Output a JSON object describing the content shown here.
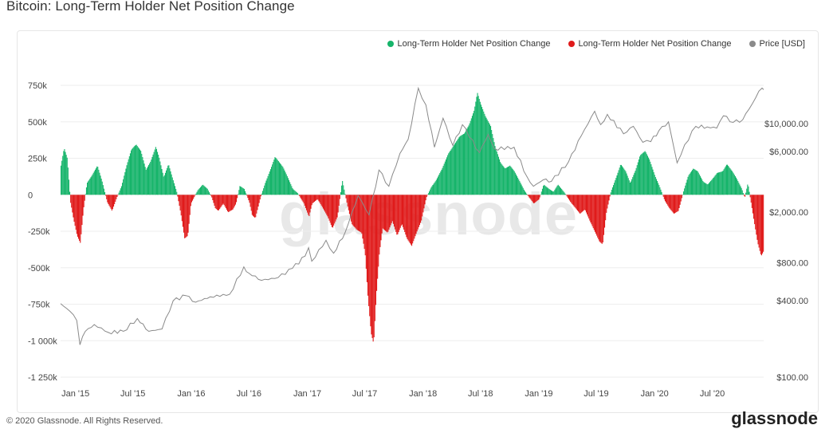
{
  "page": {
    "title": "Bitcoin: Long-Term Holder Net Position Change",
    "copyright": "© 2020 Glassnode. All Rights Reserved.",
    "footer_logo": "glassnode",
    "watermark": "glassnode"
  },
  "colors": {
    "positive": "#16b46a",
    "negative": "#e01b1b",
    "price": "#8a8a8a",
    "grid": "#eeeeee"
  },
  "chart_data": {
    "type": "area",
    "title": "Bitcoin: Long-Term Holder Net Position Change",
    "legend_placement": "top-right",
    "grid": true,
    "legend": [
      {
        "label": "Long-Term Holder Net Position Change",
        "color": "#16b46a"
      },
      {
        "label": "Long-Term Holder Net Position Change",
        "color": "#e01b1b"
      },
      {
        "label": "Price [USD]",
        "color": "#8a8a8a"
      }
    ],
    "x_ticks": [
      "Jan '15",
      "Jul '15",
      "Jan '16",
      "Jul '16",
      "Jan '17",
      "Jul '17",
      "Jan '18",
      "Jul '18",
      "Jan '19",
      "Jul '19",
      "Jan '20",
      "Jul '20"
    ],
    "x_range": [
      "2014-11-15",
      "2020-12-10"
    ],
    "y_left": {
      "ticks": [
        "750k",
        "500k",
        "250k",
        "0",
        "-250k",
        "-500k",
        "-750k",
        "-1 000k",
        "-1 250k"
      ],
      "tick_values": [
        750000,
        500000,
        250000,
        0,
        -250000,
        -500000,
        -750000,
        -1000000,
        -1250000
      ],
      "range": [
        -1250000,
        750000
      ]
    },
    "y_right": {
      "scale": "log",
      "ticks": [
        "$10,000.00",
        "$6,000.00",
        "$2,000.00",
        "$800.00",
        "$400.00",
        "$100.00"
      ],
      "tick_values": [
        10000,
        6000,
        2000,
        800,
        400,
        100
      ],
      "range": [
        100,
        20000
      ]
    },
    "net_position_change": [
      [
        "2014-11-15",
        200000
      ],
      [
        "2014-11-25",
        320000
      ],
      [
        "2014-12-05",
        250000
      ],
      [
        "2014-12-15",
        -50000
      ],
      [
        "2014-12-25",
        -170000
      ],
      [
        "2015-01-05",
        -280000
      ],
      [
        "2015-01-15",
        -330000
      ],
      [
        "2015-01-25",
        -100000
      ],
      [
        "2015-02-05",
        80000
      ],
      [
        "2015-02-20",
        130000
      ],
      [
        "2015-03-10",
        200000
      ],
      [
        "2015-03-25",
        90000
      ],
      [
        "2015-04-10",
        -50000
      ],
      [
        "2015-04-25",
        -110000
      ],
      [
        "2015-05-10",
        -20000
      ],
      [
        "2015-05-25",
        60000
      ],
      [
        "2015-06-10",
        200000
      ],
      [
        "2015-06-25",
        310000
      ],
      [
        "2015-07-10",
        345000
      ],
      [
        "2015-07-25",
        300000
      ],
      [
        "2015-08-10",
        170000
      ],
      [
        "2015-08-25",
        230000
      ],
      [
        "2015-09-10",
        330000
      ],
      [
        "2015-09-20",
        260000
      ],
      [
        "2015-10-05",
        120000
      ],
      [
        "2015-10-20",
        210000
      ],
      [
        "2015-11-01",
        120000
      ],
      [
        "2015-11-15",
        20000
      ],
      [
        "2015-11-28",
        -130000
      ],
      [
        "2015-12-10",
        -300000
      ],
      [
        "2015-12-20",
        -280000
      ],
      [
        "2015-12-30",
        -60000
      ],
      [
        "2016-01-20",
        30000
      ],
      [
        "2016-02-05",
        70000
      ],
      [
        "2016-02-20",
        40000
      ],
      [
        "2016-03-05",
        -20000
      ],
      [
        "2016-03-15",
        -90000
      ],
      [
        "2016-03-25",
        -110000
      ],
      [
        "2016-04-10",
        -60000
      ],
      [
        "2016-04-25",
        -120000
      ],
      [
        "2016-05-10",
        -100000
      ],
      [
        "2016-05-20",
        -60000
      ],
      [
        "2016-06-01",
        60000
      ],
      [
        "2016-06-15",
        40000
      ],
      [
        "2016-07-01",
        -50000
      ],
      [
        "2016-07-10",
        -140000
      ],
      [
        "2016-07-20",
        -160000
      ],
      [
        "2016-08-05",
        -20000
      ],
      [
        "2016-08-20",
        80000
      ],
      [
        "2016-09-05",
        170000
      ],
      [
        "2016-09-20",
        260000
      ],
      [
        "2016-10-01",
        230000
      ],
      [
        "2016-10-15",
        190000
      ],
      [
        "2016-10-30",
        120000
      ],
      [
        "2016-11-15",
        40000
      ],
      [
        "2016-12-01",
        10000
      ],
      [
        "2016-12-20",
        -60000
      ],
      [
        "2017-01-05",
        -150000
      ],
      [
        "2017-01-15",
        -60000
      ],
      [
        "2017-02-01",
        -30000
      ],
      [
        "2017-02-15",
        -80000
      ],
      [
        "2017-03-05",
        -150000
      ],
      [
        "2017-03-20",
        -230000
      ],
      [
        "2017-04-05",
        -150000
      ],
      [
        "2017-04-20",
        100000
      ],
      [
        "2017-05-05",
        -60000
      ],
      [
        "2017-05-20",
        -200000
      ],
      [
        "2017-06-05",
        -240000
      ],
      [
        "2017-06-20",
        -260000
      ],
      [
        "2017-07-01",
        -400000
      ],
      [
        "2017-07-10",
        -700000
      ],
      [
        "2017-07-20",
        -950000
      ],
      [
        "2017-07-28",
        -1020000
      ],
      [
        "2017-08-05",
        -700000
      ],
      [
        "2017-08-15",
        -400000
      ],
      [
        "2017-08-25",
        -230000
      ],
      [
        "2017-09-10",
        -260000
      ],
      [
        "2017-09-25",
        -180000
      ],
      [
        "2017-10-10",
        -280000
      ],
      [
        "2017-10-25",
        -200000
      ],
      [
        "2017-11-10",
        -300000
      ],
      [
        "2017-11-25",
        -350000
      ],
      [
        "2017-12-10",
        -260000
      ],
      [
        "2017-12-25",
        -180000
      ],
      [
        "2018-01-10",
        -20000
      ],
      [
        "2018-01-25",
        50000
      ],
      [
        "2018-02-10",
        100000
      ],
      [
        "2018-03-01",
        180000
      ],
      [
        "2018-03-20",
        280000
      ],
      [
        "2018-04-10",
        350000
      ],
      [
        "2018-04-25",
        400000
      ],
      [
        "2018-05-10",
        420000
      ],
      [
        "2018-05-25",
        480000
      ],
      [
        "2018-06-10",
        580000
      ],
      [
        "2018-06-20",
        700000
      ],
      [
        "2018-07-01",
        620000
      ],
      [
        "2018-07-15",
        540000
      ],
      [
        "2018-08-01",
        470000
      ],
      [
        "2018-08-15",
        330000
      ],
      [
        "2018-09-01",
        220000
      ],
      [
        "2018-09-15",
        180000
      ],
      [
        "2018-10-01",
        200000
      ],
      [
        "2018-10-15",
        160000
      ],
      [
        "2018-11-01",
        90000
      ],
      [
        "2018-11-15",
        30000
      ],
      [
        "2018-12-01",
        -20000
      ],
      [
        "2018-12-15",
        -60000
      ],
      [
        "2019-01-01",
        -30000
      ],
      [
        "2019-01-15",
        70000
      ],
      [
        "2019-02-01",
        40000
      ],
      [
        "2019-02-15",
        20000
      ],
      [
        "2019-03-01",
        70000
      ],
      [
        "2019-03-20",
        20000
      ],
      [
        "2019-04-10",
        -50000
      ],
      [
        "2019-04-25",
        -90000
      ],
      [
        "2019-05-10",
        -130000
      ],
      [
        "2019-05-25",
        -100000
      ],
      [
        "2019-06-10",
        -180000
      ],
      [
        "2019-06-25",
        -250000
      ],
      [
        "2019-07-10",
        -320000
      ],
      [
        "2019-07-20",
        -340000
      ],
      [
        "2019-08-01",
        -120000
      ],
      [
        "2019-08-15",
        20000
      ],
      [
        "2019-09-01",
        120000
      ],
      [
        "2019-09-15",
        210000
      ],
      [
        "2019-10-01",
        160000
      ],
      [
        "2019-10-15",
        80000
      ],
      [
        "2019-11-01",
        170000
      ],
      [
        "2019-11-15",
        270000
      ],
      [
        "2019-12-01",
        300000
      ],
      [
        "2019-12-15",
        240000
      ],
      [
        "2020-01-01",
        130000
      ],
      [
        "2020-01-15",
        60000
      ],
      [
        "2020-02-01",
        -40000
      ],
      [
        "2020-02-15",
        -90000
      ],
      [
        "2020-03-01",
        -130000
      ],
      [
        "2020-03-15",
        -110000
      ],
      [
        "2020-04-01",
        30000
      ],
      [
        "2020-04-15",
        130000
      ],
      [
        "2020-05-01",
        180000
      ],
      [
        "2020-05-15",
        160000
      ],
      [
        "2020-06-01",
        90000
      ],
      [
        "2020-06-15",
        70000
      ],
      [
        "2020-07-01",
        110000
      ],
      [
        "2020-07-15",
        150000
      ],
      [
        "2020-08-01",
        160000
      ],
      [
        "2020-08-15",
        210000
      ],
      [
        "2020-09-01",
        160000
      ],
      [
        "2020-09-15",
        110000
      ],
      [
        "2020-10-01",
        40000
      ],
      [
        "2020-10-10",
        -20000
      ],
      [
        "2020-10-20",
        80000
      ],
      [
        "2020-11-01",
        -80000
      ],
      [
        "2020-11-10",
        -200000
      ],
      [
        "2020-11-20",
        -330000
      ],
      [
        "2020-12-01",
        -420000
      ],
      [
        "2020-12-10",
        -380000
      ]
    ],
    "price_usd": [
      [
        "2014-11-15",
        380
      ],
      [
        "2014-12-15",
        330
      ],
      [
        "2015-01-05",
        280
      ],
      [
        "2015-01-15",
        180
      ],
      [
        "2015-02-01",
        230
      ],
      [
        "2015-03-01",
        260
      ],
      [
        "2015-04-15",
        225
      ],
      [
        "2015-06-01",
        230
      ],
      [
        "2015-07-15",
        290
      ],
      [
        "2015-08-20",
        230
      ],
      [
        "2015-10-01",
        240
      ],
      [
        "2015-11-05",
        400
      ],
      [
        "2015-12-15",
        440
      ],
      [
        "2016-01-15",
        390
      ],
      [
        "2016-03-01",
        430
      ],
      [
        "2016-05-01",
        450
      ],
      [
        "2016-06-15",
        740
      ],
      [
        "2016-07-01",
        660
      ],
      [
        "2016-08-10",
        580
      ],
      [
        "2016-10-01",
        610
      ],
      [
        "2016-11-15",
        720
      ],
      [
        "2016-12-25",
        900
      ],
      [
        "2017-01-05",
        1050
      ],
      [
        "2017-01-15",
        820
      ],
      [
        "2017-03-01",
        1200
      ],
      [
        "2017-03-25",
        950
      ],
      [
        "2017-05-01",
        1400
      ],
      [
        "2017-06-10",
        2700
      ],
      [
        "2017-07-15",
        1900
      ],
      [
        "2017-08-15",
        4300
      ],
      [
        "2017-09-15",
        3200
      ],
      [
        "2017-10-20",
        5800
      ],
      [
        "2017-11-15",
        7500
      ],
      [
        "2017-12-17",
        19000
      ],
      [
        "2018-01-10",
        14000
      ],
      [
        "2018-02-06",
        6500
      ],
      [
        "2018-03-05",
        11000
      ],
      [
        "2018-04-05",
        6700
      ],
      [
        "2018-05-05",
        9800
      ],
      [
        "2018-06-28",
        5900
      ],
      [
        "2018-07-25",
        8200
      ],
      [
        "2018-08-15",
        6300
      ],
      [
        "2018-10-15",
        6500
      ],
      [
        "2018-11-25",
        3800
      ],
      [
        "2018-12-15",
        3200
      ],
      [
        "2019-01-15",
        3600
      ],
      [
        "2019-02-10",
        3500
      ],
      [
        "2019-04-05",
        5000
      ],
      [
        "2019-05-15",
        8000
      ],
      [
        "2019-06-26",
        12500
      ],
      [
        "2019-07-15",
        9800
      ],
      [
        "2019-08-05",
        11800
      ],
      [
        "2019-09-25",
        8300
      ],
      [
        "2019-10-26",
        9500
      ],
      [
        "2019-11-25",
        7100
      ],
      [
        "2019-12-20",
        7200
      ],
      [
        "2020-01-15",
        8800
      ],
      [
        "2020-02-14",
        10300
      ],
      [
        "2020-03-12",
        4900
      ],
      [
        "2020-04-05",
        6800
      ],
      [
        "2020-05-10",
        9500
      ],
      [
        "2020-06-15",
        9400
      ],
      [
        "2020-07-15",
        9200
      ],
      [
        "2020-08-05",
        11500
      ],
      [
        "2020-09-05",
        10200
      ],
      [
        "2020-10-05",
        10700
      ],
      [
        "2020-10-25",
        13000
      ],
      [
        "2020-11-15",
        16000
      ],
      [
        "2020-11-25",
        18000
      ],
      [
        "2020-12-05",
        19000
      ],
      [
        "2020-12-10",
        18500
      ]
    ]
  }
}
